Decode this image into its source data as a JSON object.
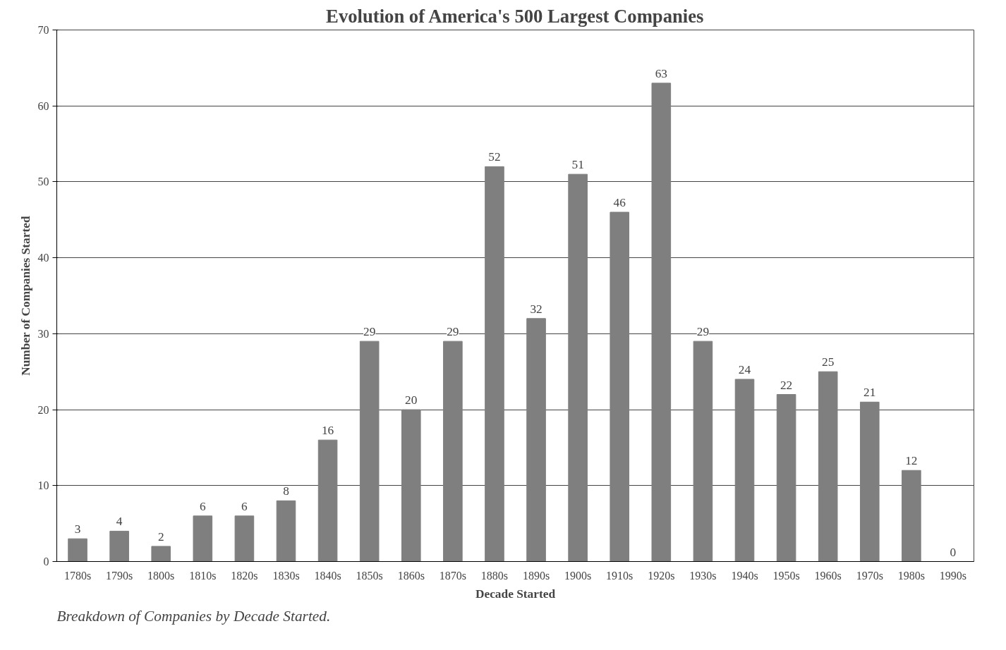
{
  "chart_data": {
    "type": "bar",
    "title": "Evolution of America's 500 Largest Companies",
    "xlabel": "Decade Started",
    "ylabel": "Number of Companies Started",
    "categories": [
      "1780s",
      "1790s",
      "1800s",
      "1810s",
      "1820s",
      "1830s",
      "1840s",
      "1850s",
      "1860s",
      "1870s",
      "1880s",
      "1890s",
      "1900s",
      "1910s",
      "1920s",
      "1930s",
      "1940s",
      "1950s",
      "1960s",
      "1970s",
      "1980s",
      "1990s"
    ],
    "values": [
      3,
      4,
      2,
      6,
      6,
      8,
      16,
      29,
      20,
      29,
      52,
      32,
      51,
      46,
      63,
      29,
      24,
      22,
      25,
      21,
      12,
      0
    ],
    "color": "#7f7f7f",
    "ylim": [
      0,
      70
    ],
    "yticks": [
      0,
      10,
      20,
      30,
      40,
      50,
      60,
      70
    ],
    "grid": "y",
    "data_labels": true,
    "annotations": [
      "Breakdown of Companies by Decade Started."
    ]
  }
}
